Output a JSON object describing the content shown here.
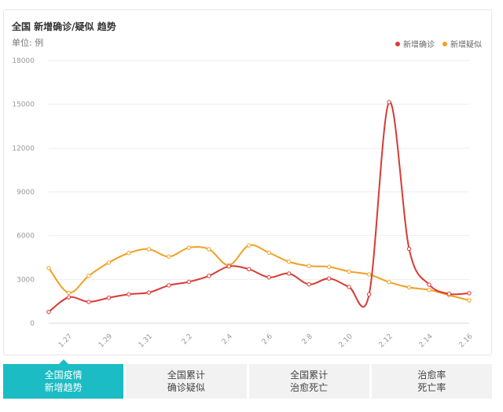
{
  "chart_data": {
    "type": "line",
    "title": "全国 新增确诊/疑似 趋势",
    "unit_label": "单位: 例",
    "ylim": [
      0,
      18000
    ],
    "yticks": [
      0,
      3000,
      6000,
      9000,
      12000,
      15000,
      18000
    ],
    "categories": [
      "1.26",
      "1.27",
      "1.28",
      "1.29",
      "1.30",
      "1.31",
      "2.1",
      "2.2",
      "2.3",
      "2.4",
      "2.5",
      "2.6",
      "2.7",
      "2.8",
      "2.9",
      "2.10",
      "2.11",
      "2.12",
      "2.13",
      "2.14",
      "2.15",
      "2.16"
    ],
    "xtick_labels": [
      "1.27",
      "1.29",
      "1.31",
      "2.2",
      "2.4",
      "2.6",
      "2.8",
      "2.10",
      "2.12",
      "2.14",
      "2.16"
    ],
    "series": [
      {
        "name": "新增确诊",
        "color": "#d83a34",
        "values": [
          770,
          1770,
          1460,
          1740,
          1980,
          2100,
          2590,
          2830,
          3240,
          3890,
          3700,
          3140,
          3400,
          2660,
          3060,
          2480,
          1970,
          15150,
          5090,
          2640,
          2010,
          2050
        ]
      },
      {
        "name": "新增疑似",
        "color": "#f0a024",
        "values": [
          3780,
          2080,
          3250,
          4150,
          4810,
          5070,
          4560,
          5170,
          5070,
          3970,
          5330,
          4830,
          4210,
          3920,
          3860,
          3540,
          3340,
          2810,
          2450,
          2280,
          1920,
          1560
        ]
      }
    ],
    "legend_position": "top-right",
    "grid": true
  },
  "tabs": [
    {
      "line1": "全国疫情",
      "line2": "新增趋势",
      "active": true
    },
    {
      "line1": "全国累计",
      "line2": "确诊疑似",
      "active": false
    },
    {
      "line1": "全国累计",
      "line2": "治愈死亡",
      "active": false
    },
    {
      "line1": "治愈率",
      "line2": "死亡率",
      "active": false
    }
  ]
}
